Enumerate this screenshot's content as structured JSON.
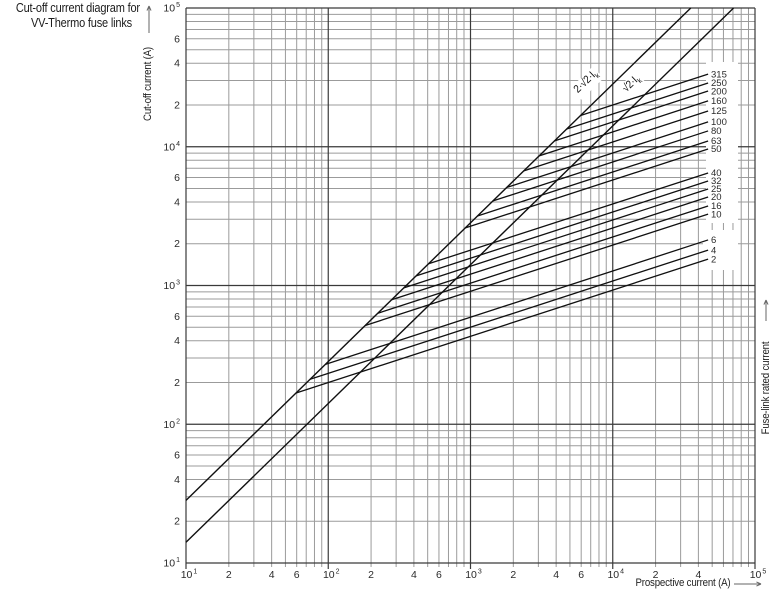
{
  "title": {
    "line1": "Cut-off current diagram for",
    "line2": "VV-Thermo fuse links"
  },
  "chart_data": {
    "type": "line",
    "x_axis": {
      "label": "Prospective current (A)",
      "scale": "log",
      "min": 10,
      "max": 100000,
      "ticks": [
        {
          "v": 10,
          "t": "10",
          "e": "1"
        },
        {
          "v": 20,
          "t": "2"
        },
        {
          "v": 40,
          "t": "4"
        },
        {
          "v": 60,
          "t": "6"
        },
        {
          "v": 100,
          "t": "10",
          "e": "2"
        },
        {
          "v": 200,
          "t": "2"
        },
        {
          "v": 400,
          "t": "4"
        },
        {
          "v": 600,
          "t": "6"
        },
        {
          "v": 1000,
          "t": "10",
          "e": "3"
        },
        {
          "v": 2000,
          "t": "2"
        },
        {
          "v": 4000,
          "t": "4"
        },
        {
          "v": 6000,
          "t": "6"
        },
        {
          "v": 10000,
          "t": "10",
          "e": "4"
        },
        {
          "v": 20000,
          "t": "2"
        },
        {
          "v": 40000,
          "t": "4"
        },
        {
          "v": 100000,
          "t": "10",
          "e": "5"
        }
      ]
    },
    "y_axis": {
      "label": "Cut-off current (A)",
      "scale": "log",
      "min": 10,
      "max": 100000,
      "ticks": [
        {
          "v": 100000,
          "t": "10",
          "e": "5"
        },
        {
          "v": 60000,
          "t": "6"
        },
        {
          "v": 40000,
          "t": "4"
        },
        {
          "v": 20000,
          "t": "2"
        },
        {
          "v": 10000,
          "t": "10",
          "e": "4"
        },
        {
          "v": 6000,
          "t": "6"
        },
        {
          "v": 4000,
          "t": "4"
        },
        {
          "v": 2000,
          "t": "2"
        },
        {
          "v": 1000,
          "t": "10",
          "e": "3"
        },
        {
          "v": 600,
          "t": "6"
        },
        {
          "v": 400,
          "t": "4"
        },
        {
          "v": 200,
          "t": "2"
        },
        {
          "v": 100,
          "t": "10",
          "e": "2"
        },
        {
          "v": 60,
          "t": "6"
        },
        {
          "v": 40,
          "t": "4"
        },
        {
          "v": 20,
          "t": "2"
        },
        {
          "v": 10,
          "t": "10",
          "e": "1"
        }
      ]
    },
    "right_axis_label": "Fuse-link rated current",
    "grid": "log major and minor, both axes",
    "envelope_lines": [
      {
        "label": "2·√2·I",
        "sub": "k",
        "points": [
          [
            10,
            28.3
          ],
          [
            35355,
            100000
          ]
        ]
      },
      {
        "label": "√2·I",
        "sub": "k",
        "points": [
          [
            10,
            14.1
          ],
          [
            70711,
            100000
          ]
        ]
      }
    ],
    "fuse_lines": [
      {
        "rating": "315",
        "points": [
          [
            5940,
            16800
          ],
          [
            46800,
            33400
          ]
        ]
      },
      {
        "rating": "250",
        "points": [
          [
            4750,
            13430
          ],
          [
            46800,
            28800
          ]
        ]
      },
      {
        "rating": "200",
        "points": [
          [
            3900,
            11030
          ],
          [
            46800,
            25200
          ]
        ]
      },
      {
        "rating": "160",
        "points": [
          [
            3040,
            8600
          ],
          [
            46800,
            21400
          ]
        ]
      },
      {
        "rating": "125",
        "points": [
          [
            2370,
            6700
          ],
          [
            46800,
            18100
          ]
        ]
      },
      {
        "rating": "100",
        "points": [
          [
            1800,
            5090
          ],
          [
            46800,
            15100
          ]
        ]
      },
      {
        "rating": "80",
        "points": [
          [
            1440,
            4070
          ],
          [
            46800,
            13000
          ]
        ]
      },
      {
        "rating": "63",
        "points": [
          [
            1120,
            3170
          ],
          [
            46800,
            11000
          ]
        ]
      },
      {
        "rating": "50",
        "points": [
          [
            920,
            2600
          ],
          [
            46800,
            9630
          ]
        ]
      },
      {
        "rating": "40",
        "points": [
          [
            507,
            1434
          ],
          [
            46800,
            6470
          ]
        ]
      },
      {
        "rating": "32",
        "points": [
          [
            415,
            1174
          ],
          [
            46800,
            5660
          ]
        ]
      },
      {
        "rating": "25",
        "points": [
          [
            340,
            962
          ],
          [
            46800,
            4960
          ]
        ]
      },
      {
        "rating": "20",
        "points": [
          [
            279,
            789
          ],
          [
            46800,
            4340
          ]
        ]
      },
      {
        "rating": "16",
        "points": [
          [
            223,
            631
          ],
          [
            46800,
            3740
          ]
        ]
      },
      {
        "rating": "10",
        "points": [
          [
            182,
            515
          ],
          [
            46800,
            3270
          ]
        ]
      },
      {
        "rating": "6",
        "points": [
          [
            95.5,
            270
          ],
          [
            46800,
            2130
          ]
        ]
      },
      {
        "rating": "4",
        "points": [
          [
            74.5,
            211
          ],
          [
            46800,
            1800
          ]
        ]
      },
      {
        "rating": "2",
        "points": [
          [
            59.4,
            168
          ],
          [
            46800,
            1550
          ]
        ]
      }
    ],
    "colors": {
      "curve": "#101010",
      "grid_major": "#3a3a3a",
      "grid_minor": "#9b9b9b",
      "text": "#2a2a2a"
    }
  }
}
